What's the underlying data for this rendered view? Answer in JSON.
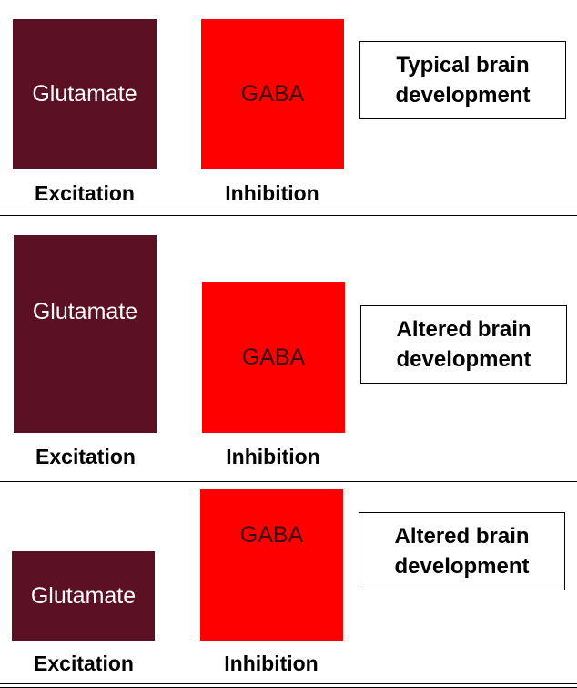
{
  "colors": {
    "glutamate_fill": "#5c1024",
    "gaba_fill": "#ff0000",
    "glutamate_text": "#ffffff",
    "gaba_text": "#3a0a10",
    "divider": "#000000"
  },
  "panels": [
    {
      "glutamate_label": "Glutamate",
      "gaba_label": "GABA",
      "excitation_label": "Excitation",
      "inhibition_label": "Inhibition",
      "outcome_line1": "Typical brain",
      "outcome_line2": "development"
    },
    {
      "glutamate_label": "Glutamate",
      "gaba_label": "GABA",
      "excitation_label": "Excitation",
      "inhibition_label": "Inhibition",
      "outcome_line1": "Altered brain",
      "outcome_line2": "development"
    },
    {
      "glutamate_label": "Glutamate",
      "gaba_label": "GABA",
      "excitation_label": "Excitation",
      "inhibition_label": "Inhibition",
      "outcome_line1": "Altered brain",
      "outcome_line2": "development"
    }
  ]
}
